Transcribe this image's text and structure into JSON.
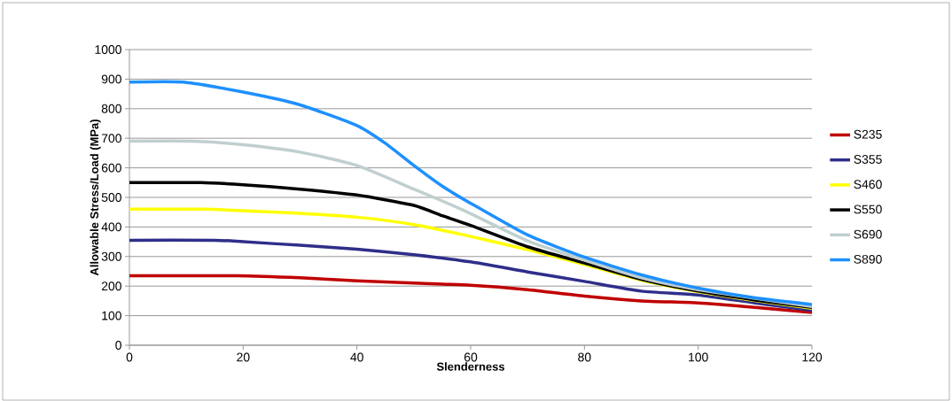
{
  "chart_data": {
    "type": "line",
    "xlabel": "Slenderness",
    "ylabel": "Allowable Stress/Load (MPa)",
    "xlim": [
      0,
      120
    ],
    "ylim": [
      0,
      1000
    ],
    "xticks": [
      0,
      20,
      40,
      60,
      80,
      100,
      120
    ],
    "yticks": [
      0,
      100,
      200,
      300,
      400,
      500,
      600,
      700,
      800,
      900,
      1000
    ],
    "grid": "y",
    "legend": "right",
    "marker": "none",
    "line_style": "solid",
    "series": [
      {
        "name": "S235",
        "color": "#c00000",
        "x": [
          0,
          19,
          30,
          40,
          50,
          60,
          70,
          80,
          90,
          100,
          110,
          120
        ],
        "values": [
          235,
          235,
          228,
          218,
          210,
          203,
          188,
          166,
          150,
          143,
          128,
          111
        ]
      },
      {
        "name": "S355",
        "color": "#2e2e8a",
        "x": [
          0,
          15,
          20,
          30,
          40,
          50,
          60,
          70,
          80,
          90,
          100,
          110,
          120
        ],
        "values": [
          355,
          355,
          350,
          338,
          325,
          306,
          282,
          248,
          216,
          183,
          170,
          143,
          118
        ]
      },
      {
        "name": "S460",
        "color": "#ffff00",
        "x": [
          0,
          13,
          20,
          30,
          40,
          50,
          60,
          70,
          80,
          90,
          100,
          110,
          120
        ],
        "values": [
          460,
          460,
          455,
          446,
          433,
          408,
          368,
          323,
          273,
          220,
          181,
          151,
          125
        ]
      },
      {
        "name": "S550",
        "color": "#000000",
        "x": [
          0,
          12.5,
          20,
          30,
          40,
          50,
          55,
          60,
          70,
          80,
          90,
          100,
          110,
          120
        ],
        "values": [
          550,
          550,
          543,
          528,
          508,
          473,
          438,
          405,
          333,
          278,
          223,
          183,
          153,
          128
        ]
      },
      {
        "name": "S690",
        "color": "#c0cfcf",
        "x": [
          0,
          11,
          20,
          30,
          40,
          50,
          55,
          60,
          70,
          80,
          90,
          100,
          110,
          120
        ],
        "values": [
          690,
          690,
          678,
          653,
          608,
          528,
          488,
          445,
          353,
          288,
          228,
          188,
          null,
          131
        ]
      },
      {
        "name": "S890",
        "color": "#1e90ff",
        "x": [
          0,
          9.5,
          20,
          30,
          40,
          45,
          50,
          55,
          60,
          70,
          80,
          90,
          100,
          110,
          120
        ],
        "values": [
          890,
          890,
          856,
          813,
          743,
          683,
          608,
          538,
          480,
          373,
          298,
          238,
          193,
          160,
          138
        ]
      }
    ]
  }
}
